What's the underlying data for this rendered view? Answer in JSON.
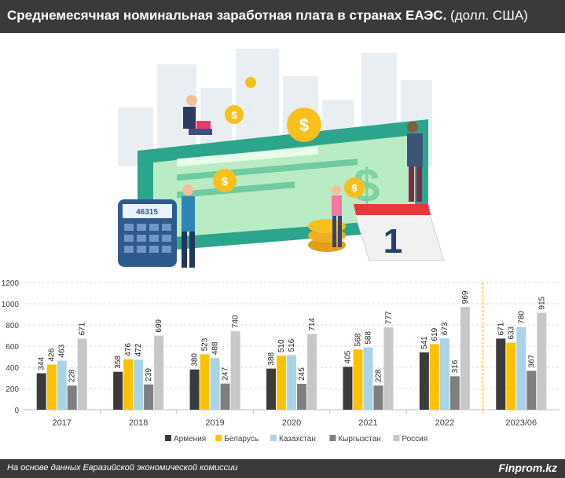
{
  "header": {
    "title": "Среднемесячная номинальная заработная плата в странах ЕАЭС.",
    "unit": "(долл. США)"
  },
  "illustration": {
    "calculator_display": "46315",
    "calendar_day": "1"
  },
  "chart_data": {
    "type": "bar",
    "title": "Среднемесячная номинальная заработная плата в странах ЕАЭС. (долл. США)",
    "categories": [
      "2017",
      "2018",
      "2019",
      "2020",
      "2021",
      "2022",
      "2023/06"
    ],
    "series": [
      {
        "name": "Армения",
        "color": "#3b3b3b",
        "values": [
          344,
          358,
          380,
          388,
          405,
          541,
          671
        ]
      },
      {
        "name": "Беларусь",
        "color": "#ffc000",
        "values": [
          426,
          476,
          523,
          510,
          568,
          619,
          633
        ]
      },
      {
        "name": "Казахстан",
        "color": "#a9d3e6",
        "values": [
          463,
          472,
          488,
          516,
          588,
          673,
          780
        ]
      },
      {
        "name": "Кыргызстан",
        "color": "#7f7f7f",
        "values": [
          228,
          239,
          247,
          245,
          228,
          316,
          367
        ]
      },
      {
        "name": "Россия",
        "color": "#c7c7c7",
        "values": [
          671,
          699,
          740,
          714,
          777,
          969,
          915
        ]
      }
    ],
    "yticks": [
      0,
      200,
      400,
      600,
      800,
      1000,
      1200
    ],
    "ylim": [
      0,
      1200
    ],
    "grid": true,
    "legend_position": "bottom",
    "separator_color": "#ffc000"
  },
  "footer": {
    "source": "На основе данных Евразийской экономической комиссии",
    "brand": "Finprom.kz"
  }
}
